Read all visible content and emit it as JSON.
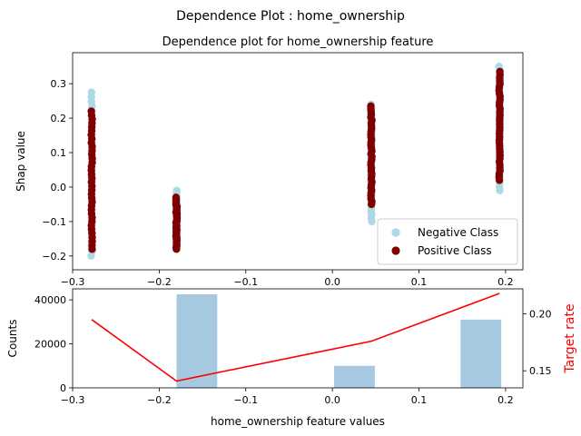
{
  "figure": {
    "suptitle": "Dependence Plot : home_ownership"
  },
  "chart_data": [
    {
      "type": "scatter",
      "title": "Dependence plot for home_ownership feature",
      "xlabel": "",
      "ylabel": "Shap value",
      "xlim": [
        -0.3,
        0.22
      ],
      "ylim": [
        -0.24,
        0.39
      ],
      "xticks": [
        -0.3,
        -0.2,
        -0.1,
        0.0,
        0.1,
        0.2
      ],
      "xtick_labels": [
        "−0.3",
        "−0.2",
        "−0.1",
        "0.0",
        "0.1",
        "0.2"
      ],
      "yticks": [
        -0.2,
        -0.1,
        0.0,
        0.1,
        0.2,
        0.3
      ],
      "ytick_labels": [
        "−0.2",
        "−0.1",
        "0.0",
        "0.1",
        "0.2",
        "0.3"
      ],
      "grid": false,
      "legend": {
        "position": "lower-right",
        "entries": [
          "Negative Class",
          "Positive Class"
        ]
      },
      "series": [
        {
          "name": "Negative Class",
          "color": "#add8e6",
          "groups": [
            {
              "x": -0.278,
              "y_min": -0.2,
              "y_max": 0.275
            },
            {
              "x": -0.18,
              "y_min": -0.175,
              "y_max": -0.01
            },
            {
              "x": 0.045,
              "y_min": -0.1,
              "y_max": 0.24
            },
            {
              "x": 0.193,
              "y_min": -0.01,
              "y_max": 0.35
            }
          ]
        },
        {
          "name": "Positive Class",
          "color": "#800000",
          "groups": [
            {
              "x": -0.278,
              "y_min": -0.18,
              "y_max": 0.22
            },
            {
              "x": -0.18,
              "y_min": -0.18,
              "y_max": -0.03
            },
            {
              "x": 0.045,
              "y_min": -0.05,
              "y_max": 0.235
            },
            {
              "x": 0.193,
              "y_min": 0.02,
              "y_max": 0.335
            }
          ]
        }
      ]
    },
    {
      "type": "bar",
      "xlabel": "home_ownership feature values",
      "ylabel": "Counts",
      "xlim": [
        -0.3,
        0.22
      ],
      "ylim": [
        0,
        45000
      ],
      "xticks": [
        -0.3,
        -0.2,
        -0.1,
        0.0,
        0.1,
        0.2
      ],
      "xtick_labels": [
        "−0.3",
        "−0.2",
        "−0.1",
        "0.0",
        "0.1",
        "0.2"
      ],
      "yticks": [
        0,
        20000,
        40000
      ],
      "ytick_labels": [
        "0",
        "20000",
        "40000"
      ],
      "bar_color": "#a6c8e0",
      "bars": [
        {
          "x_start": -0.18,
          "x_end": -0.133,
          "value": 42500
        },
        {
          "x_start": 0.002,
          "x_end": 0.049,
          "value": 10000
        },
        {
          "x_start": 0.148,
          "x_end": 0.195,
          "value": 31000
        }
      ],
      "line": {
        "name": "Target rate",
        "color": "#ff0000",
        "ylabel": "Target rate",
        "ylim": [
          0.135,
          0.222
        ],
        "yticks": [
          0.15,
          0.2
        ],
        "ytick_labels": [
          "0.15",
          "0.20"
        ],
        "x": [
          -0.278,
          -0.18,
          0.045,
          0.193
        ],
        "y": [
          0.195,
          0.141,
          0.176,
          0.218
        ]
      }
    }
  ]
}
